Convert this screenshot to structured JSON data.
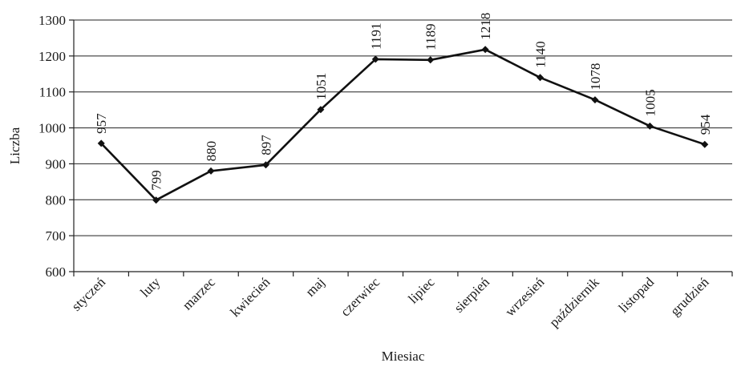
{
  "chart_data": {
    "type": "line",
    "categories": [
      "styczeń",
      "luty",
      "marzec",
      "kwiecień",
      "maj",
      "czerwiec",
      "lipiec",
      "sierpień",
      "wrzesień",
      "październik",
      "listopad",
      "grudzień"
    ],
    "values": [
      957,
      799,
      880,
      897,
      1051,
      1191,
      1189,
      1218,
      1140,
      1078,
      1005,
      954
    ],
    "data_labels": [
      "957",
      "799",
      "880",
      "897",
      "1051",
      "1191",
      "1189",
      "1218",
      "1140",
      "1078",
      "1005",
      "954"
    ],
    "ylabel": "Liczba",
    "xlabel": "Miesiac",
    "ylim": [
      600,
      1300
    ],
    "yticks": [
      600,
      700,
      800,
      900,
      1000,
      1100,
      1200,
      1300
    ],
    "grid": "horizontal",
    "marker": "diamond"
  }
}
